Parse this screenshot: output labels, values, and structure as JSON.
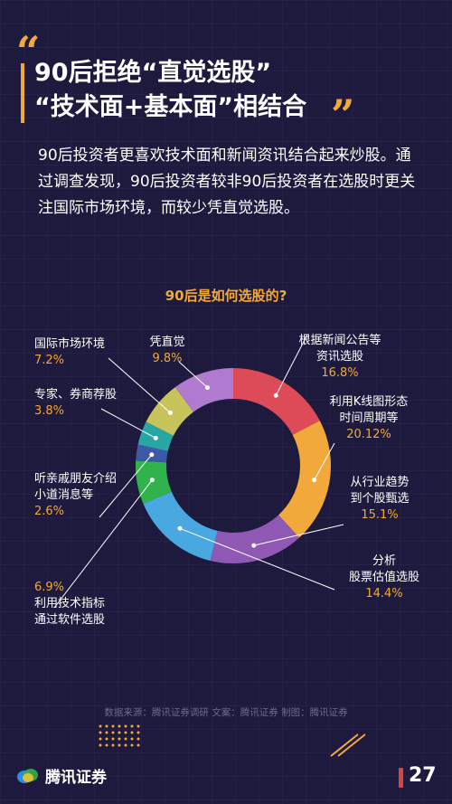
{
  "title": {
    "line1": "90后拒绝“直觉选股”",
    "line2": "“技术面+基本面”相结合"
  },
  "intro": "90后投资者更喜欢技术面和新闻资讯结合起来炒股。通过调查发现，90后投资者较非90后投资者在选股时更关注国际市场环境，而较少凭直觉选股。",
  "chart_data": {
    "type": "pie",
    "title": "90后是如何选股的?",
    "slices": [
      {
        "label_lines": [
          "根据新闻公告等",
          "资讯选股"
        ],
        "value_label": "16.8%",
        "value": 16.8,
        "color": "#dc4b57"
      },
      {
        "label_lines": [
          "利用K线图形态",
          "时间周期等"
        ],
        "value_label": "20.12%",
        "value": 20.12,
        "color": "#f2a93b"
      },
      {
        "label_lines": [
          "从行业趋势",
          "到个股甄选"
        ],
        "value_label": "15.1%",
        "value": 15.1,
        "color": "#8f58b5"
      },
      {
        "label_lines": [
          "分析",
          "股票估值选股"
        ],
        "value_label": "14.4%",
        "value": 14.4,
        "color": "#4aa8e0"
      },
      {
        "label_lines": [
          "利用技术指标",
          "通过软件选股"
        ],
        "value_label": "6.9%",
        "value": 6.9,
        "color": "#2fb34a"
      },
      {
        "label_lines": [
          "听亲戚朋友介绍",
          "小道消息等"
        ],
        "value_label": "2.6%",
        "value": 2.6,
        "color": "#3e58a8"
      },
      {
        "label_lines": [
          "专家、券商荐股"
        ],
        "value_label": "3.8%",
        "value": 3.8,
        "color": "#27a6a4"
      },
      {
        "label_lines": [
          "国际市场环境"
        ],
        "value_label": "7.2%",
        "value": 7.2,
        "color": "#c6c45a"
      },
      {
        "label_lines": [
          "凭直觉"
        ],
        "value_label": "9.8%",
        "value": 9.8,
        "color": "#b07ad1"
      }
    ]
  },
  "footer": "数据来源：腾讯证券调研  文案：腾讯证券  制图：腾讯证券",
  "brand": "腾讯证券",
  "page_number": "27",
  "colors": {
    "accent": "#f2a93b",
    "background": "#1d1a3d",
    "page_marker": "#d9443f"
  }
}
